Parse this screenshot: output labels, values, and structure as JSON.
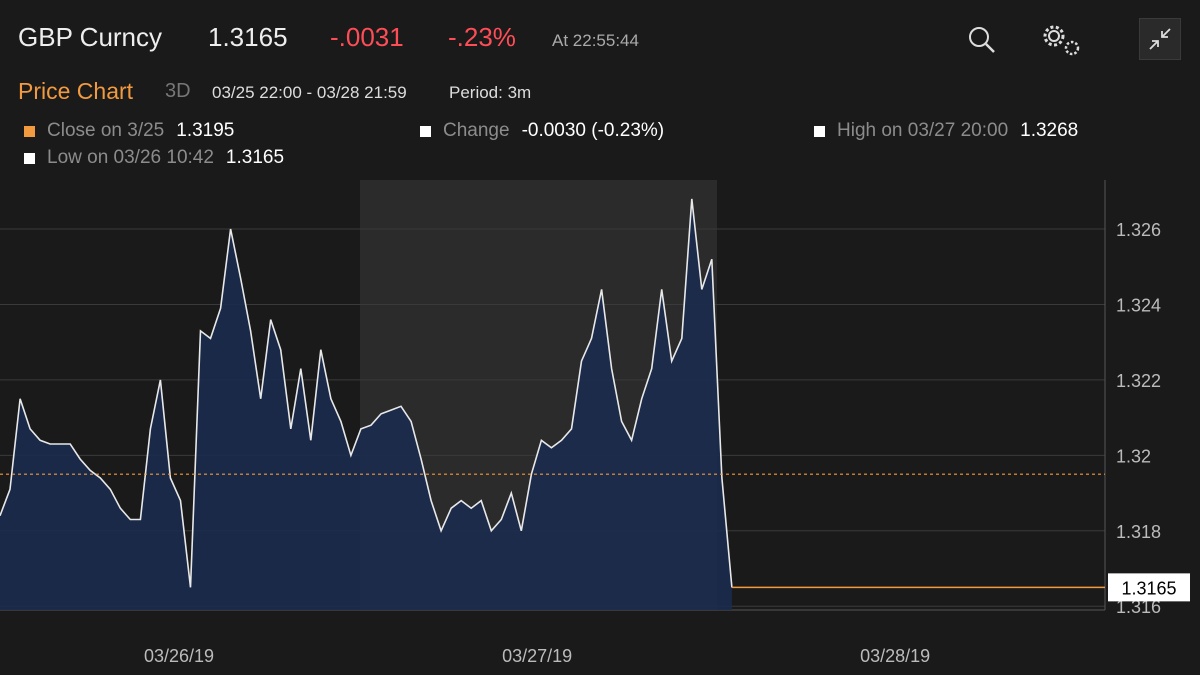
{
  "header": {
    "ticker": "GBP Curncy",
    "price": "1.3165",
    "change": "-.0031",
    "change_pct": "-.23%",
    "time": "At 22:55:44"
  },
  "toolbar": {
    "tab": "Price Chart",
    "range_button": "3D",
    "range": "03/25 22:00 - 03/28 21:59",
    "period": "Period: 3m"
  },
  "chart_data": {
    "type": "area",
    "legend": [
      {
        "label": "Close on 3/25",
        "value": 1.3195,
        "color": "#f29a3f"
      },
      {
        "label": "Change",
        "value": "-0.0030 (-0.23%)",
        "color": "#ffffff"
      },
      {
        "label": "High on 03/27 20:00",
        "value": 1.3268,
        "color": "#ffffff"
      },
      {
        "label": "Low on 03/26 10:42",
        "value": 1.3165,
        "color": "#ffffff"
      }
    ],
    "x": [
      25.5,
      25.528,
      25.556,
      25.584,
      25.612,
      25.64,
      25.668,
      25.696,
      25.724,
      25.752,
      25.78,
      25.808,
      25.836,
      25.864,
      25.892,
      25.92,
      25.948,
      25.976,
      26.004,
      26.032,
      26.06,
      26.088,
      26.116,
      26.144,
      26.172,
      26.2,
      26.228,
      26.256,
      26.284,
      26.312,
      26.34,
      26.368,
      26.396,
      26.424,
      26.452,
      26.48,
      26.508,
      26.536,
      26.564,
      26.592,
      26.62,
      26.648,
      26.676,
      26.704,
      26.732,
      26.76,
      26.788,
      26.816,
      26.844,
      26.872,
      26.9,
      26.928,
      26.956,
      26.984,
      27.012,
      27.04,
      27.068,
      27.096,
      27.124,
      27.152,
      27.18,
      27.208,
      27.236,
      27.264,
      27.292,
      27.32,
      27.348,
      27.376,
      27.404,
      27.432,
      27.46,
      27.488,
      27.516,
      27.544
    ],
    "series": [
      {
        "color": "#e8e8e8",
        "fill": "#1a2b4d",
        "values": [
          1.3184,
          1.3191,
          1.3215,
          1.3207,
          1.3204,
          1.3203,
          1.3203,
          1.3203,
          1.3199,
          1.3196,
          1.3194,
          1.3191,
          1.3186,
          1.3183,
          1.3183,
          1.3207,
          1.322,
          1.3194,
          1.3188,
          1.3165,
          1.3233,
          1.3231,
          1.3239,
          1.326,
          1.3247,
          1.3233,
          1.3215,
          1.3236,
          1.3228,
          1.3207,
          1.3223,
          1.3204,
          1.3228,
          1.3215,
          1.3209,
          1.32,
          1.3207,
          1.3208,
          1.3211,
          1.3212,
          1.3213,
          1.3209,
          1.3199,
          1.3188,
          1.318,
          1.3186,
          1.3188,
          1.3186,
          1.3188,
          1.318,
          1.3183,
          1.319,
          1.318,
          1.3195,
          1.3204,
          1.3202,
          1.3204,
          1.3207,
          1.3225,
          1.3231,
          1.3244,
          1.3223,
          1.3209,
          1.3204,
          1.3215,
          1.3223,
          1.3244,
          1.3225,
          1.3231,
          1.3268,
          1.3244,
          1.3252,
          1.3194,
          1.3165
        ]
      }
    ],
    "xlim": [
      25.5,
      28.586
    ],
    "xticks": [
      {
        "value": 26,
        "label": "03/26/19"
      },
      {
        "value": 27,
        "label": "03/27/19"
      },
      {
        "value": 28,
        "label": "03/28/19"
      }
    ],
    "ylim": [
      1.3159,
      1.3273
    ],
    "yticks": [
      1.316,
      1.318,
      1.32,
      1.322,
      1.324,
      1.326
    ],
    "grid": true
  }
}
